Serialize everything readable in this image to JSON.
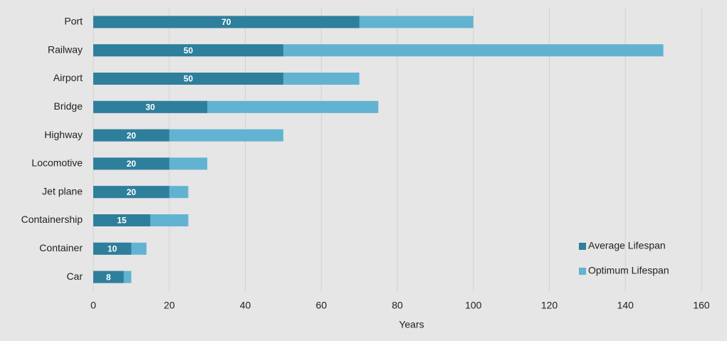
{
  "chart_data": {
    "type": "bar",
    "orientation": "horizontal",
    "x_label": "Years",
    "categories": [
      "Port",
      "Railway",
      "Airport",
      "Bridge",
      "Highway",
      "Locomotive",
      "Jet plane",
      "Containership",
      "Container",
      "Car"
    ],
    "series": [
      {
        "name": "Average Lifespan",
        "color": "#2e7f9c",
        "values": [
          70,
          50,
          50,
          30,
          20,
          20,
          20,
          15,
          10,
          8
        ]
      },
      {
        "name": "Optimum Lifespan",
        "color": "#62b3d2",
        "values": [
          100,
          150,
          70,
          75,
          50,
          30,
          25,
          25,
          14,
          10
        ]
      }
    ],
    "xlim": [
      0,
      160
    ],
    "xticks": [
      0,
      20,
      40,
      60,
      80,
      100,
      120,
      140,
      160
    ],
    "grid": true,
    "legend": "lower right"
  }
}
